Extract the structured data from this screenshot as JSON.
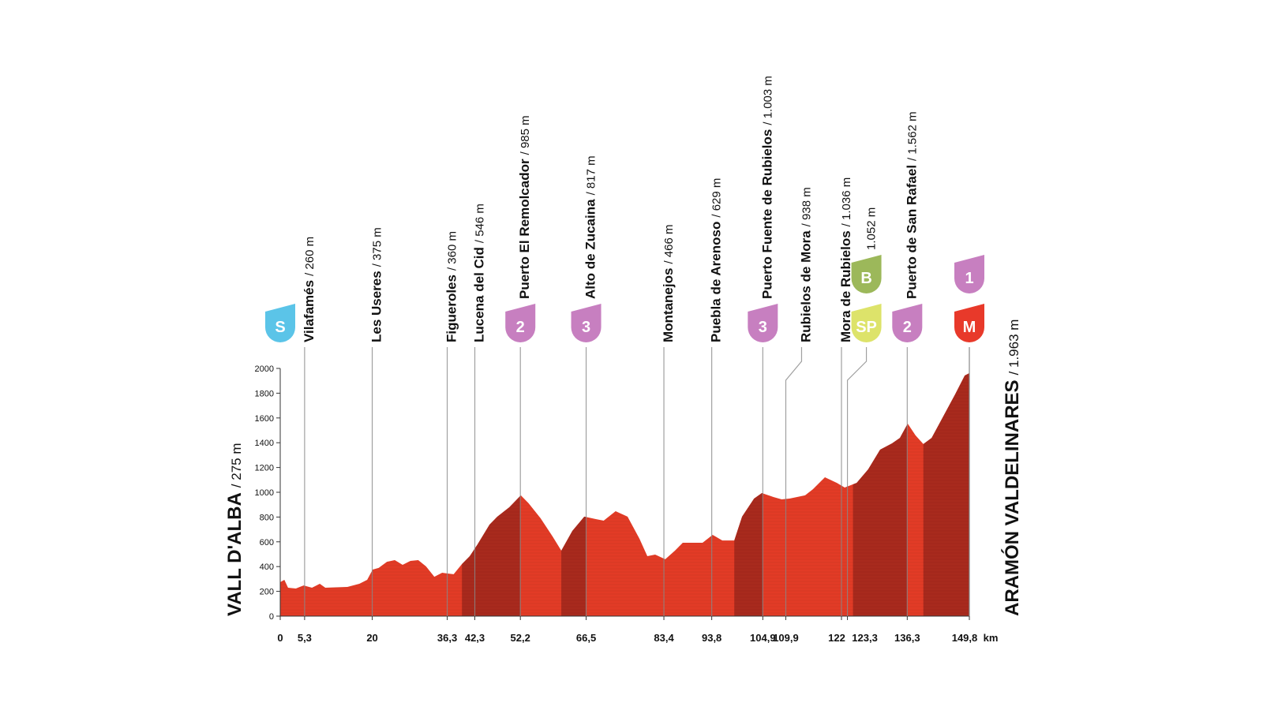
{
  "chart_data": {
    "type": "area",
    "color": "#e23b26",
    "climb_color": "#a82a1d",
    "x_unit": "km",
    "xlim": [
      0,
      149.8
    ],
    "ylim": [
      0,
      2000
    ],
    "yticks": [
      0,
      200,
      400,
      600,
      800,
      1000,
      1200,
      1400,
      1600,
      1800,
      2000
    ],
    "x": [
      0,
      0.9,
      1.7,
      3.4,
      5.1,
      6.9,
      8.6,
      9.8,
      14.6,
      17.2,
      18.9,
      20.1,
      21.4,
      23.2,
      24.9,
      26.6,
      28.3,
      30.0,
      31.7,
      33.5,
      35.2,
      36.4,
      37.7,
      39.5,
      41.2,
      42.9,
      45.5,
      47.2,
      49.8,
      52.3,
      54.0,
      56.6,
      59.2,
      61.1,
      63.5,
      66.1,
      68.7,
      70.3,
      72.9,
      75.5,
      78.1,
      79.8,
      81.5,
      83.7,
      85.8,
      87.5,
      91.8,
      94.0,
      96.1,
      98.7,
      100.4,
      103.0,
      104.7,
      107.2,
      109.0,
      110.7,
      114.1,
      115.8,
      118.4,
      121.0,
      122.7,
      125.3,
      127.8,
      130.4,
      133.0,
      134.7,
      136.4,
      138.1,
      139.8,
      141.6,
      144.1,
      146.7,
      148.8,
      149.8
    ],
    "values": [
      274,
      293,
      229,
      223,
      248,
      229,
      261,
      229,
      236,
      261,
      293,
      376,
      389,
      439,
      452,
      414,
      446,
      452,
      401,
      318,
      350,
      344,
      338,
      420,
      484,
      580,
      739,
      803,
      879,
      975,
      911,
      790,
      643,
      529,
      688,
      803,
      783,
      771,
      847,
      803,
      624,
      484,
      497,
      459,
      529,
      592,
      592,
      656,
      611,
      611,
      803,
      949,
      994,
      962,
      943,
      949,
      975,
      1025,
      1121,
      1076,
      1038,
      1076,
      1185,
      1344,
      1395,
      1439,
      1554,
      1459,
      1389,
      1439,
      1611,
      1790,
      1943,
      1962
    ],
    "climbs": [
      [
        39.5,
        52.2
      ],
      [
        61.1,
        66.5
      ],
      [
        98.7,
        104.9
      ],
      [
        124.5,
        136.3
      ],
      [
        139.8,
        149.8
      ]
    ],
    "start": {
      "name": "VALL D'ALBA",
      "altitude": "/ 275 m",
      "km": 0,
      "badges": [
        {
          "text": "S",
          "color": "#5bc4e8"
        }
      ]
    },
    "finish": {
      "name": "ARAMÓN VALDELINARES",
      "altitude": "/ 1.963 m",
      "km": {
        "value": 149.8,
        "label": "149,8"
      },
      "badges": [
        {
          "text": "1",
          "color": "#c77fc0"
        },
        {
          "text": "M",
          "color": "#e8392a"
        }
      ]
    },
    "waypoints": [
      {
        "name": "Vilafamés",
        "altitude": "/ 260 m",
        "km": {
          "value": 5.3,
          "label": "5,3"
        }
      },
      {
        "name": "Les Useres",
        "altitude": "/ 375 m",
        "km": 20
      },
      {
        "name": "Figueroles",
        "altitude": "/ 360 m",
        "km": {
          "value": 36.3,
          "label": "36,3"
        }
      },
      {
        "name": "Lucena del Cid",
        "altitude": "/ 546 m",
        "km": {
          "value": 42.3,
          "label": "42,3"
        }
      },
      {
        "name": "Puerto El Remolcador",
        "altitude": "/ 985 m",
        "km": {
          "value": 52.2,
          "label": "52,2"
        },
        "badges": [
          {
            "text": "2",
            "color": "#c77fc0"
          }
        ]
      },
      {
        "name": "Alto de Zucaina",
        "altitude": "/ 817 m",
        "km": {
          "value": 66.5,
          "label": "66,5"
        },
        "badges": [
          {
            "text": "3",
            "color": "#c77fc0"
          }
        ]
      },
      {
        "name": "Montanejos",
        "altitude": "/ 466 m",
        "km": {
          "value": 83.4,
          "label": "83,4"
        }
      },
      {
        "name": "Puebla de Arenoso",
        "altitude": "/ 629 m",
        "km": {
          "value": 93.8,
          "label": "93,8"
        }
      },
      {
        "name": "Puerto Fuente de Rubielos",
        "altitude": "/ 1.003 m",
        "km": {
          "value": 104.9,
          "label": "104,9"
        },
        "badges": [
          {
            "text": "3",
            "color": "#c77fc0"
          }
        ]
      },
      {
        "name": "Rubielos de Mora",
        "altitude": "/ 938 m",
        "km": {
          "value": 109.9,
          "label": "109,9"
        }
      },
      {
        "name": "Mora de Rubielos",
        "altitude": "/ 1.036 m",
        "km": 122
      },
      {
        "altitude": "1.052 m",
        "km": {
          "value": 123.3,
          "label": "123,3"
        },
        "badges": [
          {
            "text": "B",
            "color": "#9cb85a"
          },
          {
            "text": "SP",
            "color": "#dde36a"
          }
        ]
      },
      {
        "name": "Puerto de San Rafael",
        "altitude": "/ 1.562 m",
        "km": {
          "value": 136.3,
          "label": "136,3"
        },
        "badges": [
          {
            "text": "2",
            "color": "#c77fc0"
          }
        ]
      }
    ]
  }
}
